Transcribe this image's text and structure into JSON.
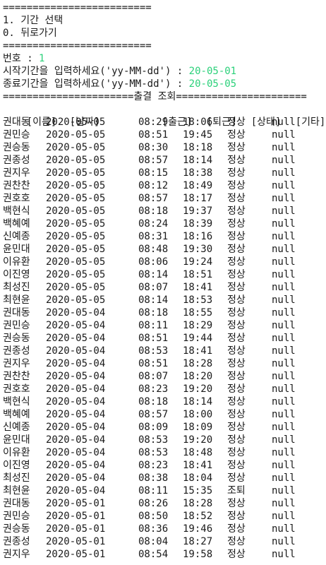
{
  "menu": {
    "separator_top": "=========================",
    "option_1": "1. 기간 선택",
    "option_0": "0. 뒤로가기",
    "separator_bottom": "========================="
  },
  "input": {
    "number_prompt": "번호 : ",
    "number_value": "1",
    "start_prompt": "시작기간을 입력하세요('yy-MM-dd') : ",
    "start_value": "20-05-01",
    "end_prompt": "종료기간을 입력하세요('yy-MM-dd') : ",
    "end_value": "20-05-05"
  },
  "report": {
    "title_line": "======================출결 조회======================",
    "headers": [
      "[이름]",
      "[날짜]",
      "[출근]",
      "[퇴근]",
      "[상태]",
      "[기타]"
    ],
    "rows": [
      [
        "권대동",
        "2020-05-05",
        "08:29",
        "18:06",
        "정상",
        "null"
      ],
      [
        "권민승",
        "2020-05-05",
        "08:51",
        "19:45",
        "정상",
        "null"
      ],
      [
        "권승동",
        "2020-05-05",
        "08:30",
        "18:18",
        "정상",
        "null"
      ],
      [
        "권종성",
        "2020-05-05",
        "08:57",
        "18:14",
        "정상",
        "null"
      ],
      [
        "권지우",
        "2020-05-05",
        "08:15",
        "18:38",
        "정상",
        "null"
      ],
      [
        "권찬찬",
        "2020-05-05",
        "08:12",
        "18:49",
        "정상",
        "null"
      ],
      [
        "권호호",
        "2020-05-05",
        "08:57",
        "18:17",
        "정상",
        "null"
      ],
      [
        "백현식",
        "2020-05-05",
        "08:18",
        "19:37",
        "정상",
        "null"
      ],
      [
        "백혜예",
        "2020-05-05",
        "08:24",
        "18:39",
        "정상",
        "null"
      ],
      [
        "신예종",
        "2020-05-05",
        "08:31",
        "18:16",
        "정상",
        "null"
      ],
      [
        "윤민대",
        "2020-05-05",
        "08:48",
        "19:30",
        "정상",
        "null"
      ],
      [
        "이유환",
        "2020-05-05",
        "08:06",
        "19:24",
        "정상",
        "null"
      ],
      [
        "이진영",
        "2020-05-05",
        "08:14",
        "18:51",
        "정상",
        "null"
      ],
      [
        "최성진",
        "2020-05-05",
        "08:07",
        "18:41",
        "정상",
        "null"
      ],
      [
        "최현윤",
        "2020-05-05",
        "08:14",
        "18:53",
        "정상",
        "null"
      ],
      [
        "권대동",
        "2020-05-04",
        "08:18",
        "18:55",
        "정상",
        "null"
      ],
      [
        "권민승",
        "2020-05-04",
        "08:11",
        "18:29",
        "정상",
        "null"
      ],
      [
        "권승동",
        "2020-05-04",
        "08:51",
        "19:44",
        "정상",
        "null"
      ],
      [
        "권종성",
        "2020-05-04",
        "08:53",
        "18:41",
        "정상",
        "null"
      ],
      [
        "권지우",
        "2020-05-04",
        "08:51",
        "18:28",
        "정상",
        "null"
      ],
      [
        "권찬찬",
        "2020-05-04",
        "08:07",
        "18:20",
        "정상",
        "null"
      ],
      [
        "권호호",
        "2020-05-04",
        "08:23",
        "19:20",
        "정상",
        "null"
      ],
      [
        "백현식",
        "2020-05-04",
        "08:18",
        "18:14",
        "정상",
        "null"
      ],
      [
        "백혜예",
        "2020-05-04",
        "08:57",
        "18:00",
        "정상",
        "null"
      ],
      [
        "신예종",
        "2020-05-04",
        "08:09",
        "18:09",
        "정상",
        "null"
      ],
      [
        "윤민대",
        "2020-05-04",
        "08:53",
        "19:20",
        "정상",
        "null"
      ],
      [
        "이유환",
        "2020-05-04",
        "08:53",
        "18:48",
        "정상",
        "null"
      ],
      [
        "이진영",
        "2020-05-04",
        "08:23",
        "18:41",
        "정상",
        "null"
      ],
      [
        "최성진",
        "2020-05-04",
        "08:38",
        "18:04",
        "정상",
        "null"
      ],
      [
        "최현윤",
        "2020-05-04",
        "08:11",
        "15:35",
        "조퇴",
        "null"
      ],
      [
        "권대동",
        "2020-05-01",
        "08:26",
        "18:28",
        "정상",
        "null"
      ],
      [
        "권민승",
        "2020-05-01",
        "08:50",
        "18:52",
        "정상",
        "null"
      ],
      [
        "권승동",
        "2020-05-01",
        "08:36",
        "19:46",
        "정상",
        "null"
      ],
      [
        "권종성",
        "2020-05-01",
        "08:04",
        "18:27",
        "정상",
        "null"
      ],
      [
        "권지우",
        "2020-05-01",
        "08:54",
        "19:58",
        "정상",
        "null"
      ]
    ]
  },
  "colors": {
    "input_value": "#2bd17a",
    "text": "#1a1a1a",
    "background": "#ffffff"
  }
}
